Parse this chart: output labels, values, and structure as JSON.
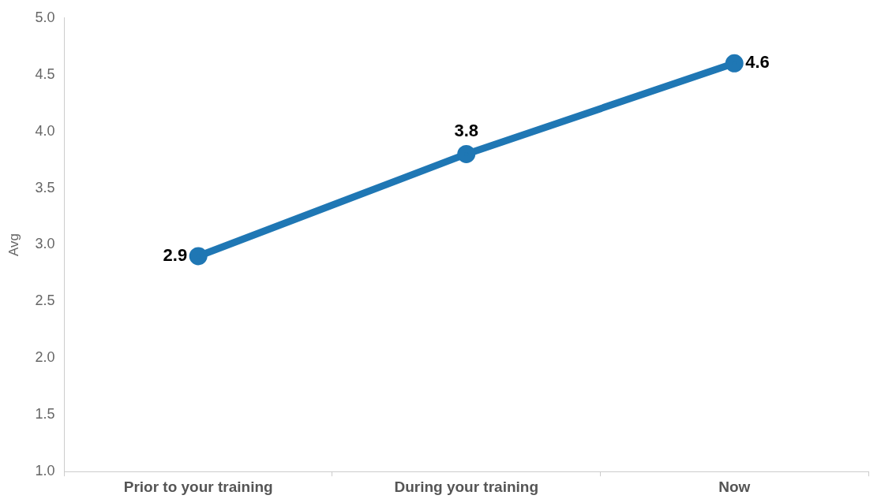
{
  "chart_data": {
    "type": "line",
    "ylabel": "Avg",
    "categories": [
      "Prior to your training",
      "During your training",
      "Now"
    ],
    "series": [
      {
        "color": "#1f77b4",
        "values": [
          2.9,
          3.8,
          4.6
        ]
      }
    ],
    "ylim": [
      1.0,
      5.0
    ],
    "yticks": [
      {
        "value": 1,
        "label": "1.0"
      },
      {
        "value": 1.5,
        "label": "1.5"
      },
      {
        "value": 2,
        "label": "2.0"
      },
      {
        "value": 2.5,
        "label": "2.5"
      },
      {
        "value": 3,
        "label": "3.0"
      },
      {
        "value": 3.5,
        "label": "3.5"
      },
      {
        "value": 4,
        "label": "4.0"
      },
      {
        "value": 4.5,
        "label": "4.5"
      },
      {
        "value": 5,
        "label": "5.0"
      }
    ],
    "grid": false,
    "legend": false,
    "marker": "circle",
    "line_style": "solid",
    "data_labels": true
  }
}
